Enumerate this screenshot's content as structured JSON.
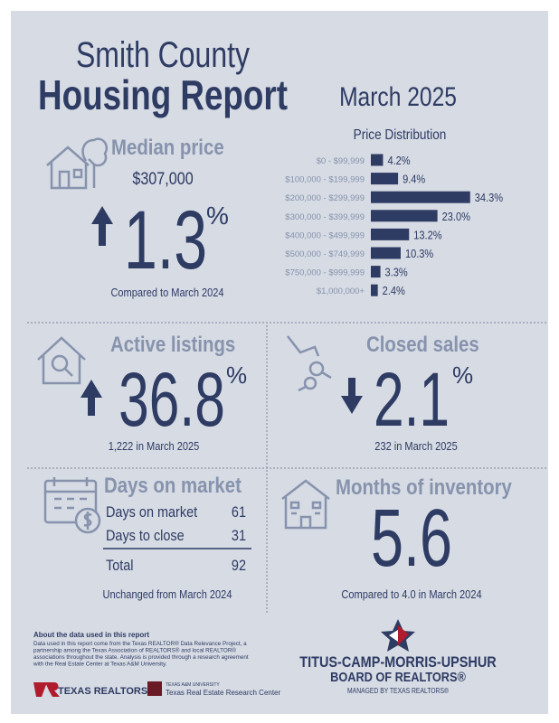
{
  "header": {
    "title_line1": "Smith County",
    "title_line2": "Housing Report",
    "period": "March 2025"
  },
  "median_price": {
    "heading": "Median price",
    "price": "$307,000",
    "change": "1.3",
    "unit": "%",
    "direction": "up",
    "note": "Compared to March 2024"
  },
  "price_distribution": {
    "title": "Price Distribution",
    "categories": [
      "$0 - $99,999",
      "$100,000 - $199,999",
      "$200,000 - $299,999",
      "$300,000 - $399,999",
      "$400,000 - $499,999",
      "$500,000 - $749,999",
      "$750,000 - $999,999",
      "$1,000,000+"
    ],
    "values": [
      4.2,
      9.4,
      34.3,
      23.0,
      13.2,
      10.3,
      3.3,
      2.4
    ],
    "value_labels": [
      "4.2%",
      "9.4%",
      "34.3%",
      "23.0%",
      "13.2%",
      "10.3%",
      "3.3%",
      "2.4%"
    ],
    "color": "#2e3b63"
  },
  "active_listings": {
    "heading": "Active listings",
    "change": "36.8",
    "unit": "%",
    "direction": "up",
    "note": "1,222 in March 2025"
  },
  "closed_sales": {
    "heading": "Closed sales",
    "change": "2.1",
    "unit": "%",
    "direction": "down",
    "note": "232 in March 2025"
  },
  "days_on_market": {
    "heading": "Days on market",
    "rows": [
      [
        "Days on market",
        61
      ],
      [
        "Days to close",
        31
      ],
      [
        "Total",
        92
      ]
    ],
    "note": "Unchanged from March 2024"
  },
  "months_of_inventory": {
    "heading": "Months of inventory",
    "value": "5.6",
    "note": "Compared to 4.0 in March 2024"
  },
  "footer": {
    "about_title": "About the data used in this report",
    "about_lines": [
      "Data used in this report come from the Texas REALTOR® Data Relevance Project, a",
      "partnership among the Texas Association of REALTORS® and local REALTOR®",
      "associations throughout the state. Analysis is provided through a research agreement",
      "with the Real Estate Center at Texas A&M University."
    ],
    "logos": [
      "TEXAS REALTORS",
      "TEXAS A&M UNIVERSITY",
      "Texas Real Estate Research Center"
    ],
    "board": [
      "TITUS-CAMP-MORRIS-UPSHUR",
      "BOARD OF REALTORS®",
      "MANAGED BY TEXAS REALTORS®"
    ]
  }
}
